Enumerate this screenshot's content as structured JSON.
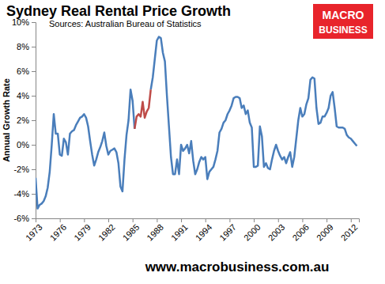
{
  "chart_data": {
    "type": "line",
    "title": "Sydney Real Rental Price Growth",
    "subtitle": "Sources: Australian Bureau of Statistics",
    "y_label": "Annual Growth Rate",
    "annotations": [
      "MACRO",
      "BUSINESS",
      "www.macrobusiness.com.au"
    ],
    "grid": false,
    "xlim": [
      1973,
      2013
    ],
    "xticks": [
      1973,
      1976,
      1979,
      1982,
      1985,
      1988,
      1991,
      1994,
      1997,
      2000,
      2003,
      2006,
      2009,
      2012
    ],
    "ylim": [
      -6,
      10
    ],
    "yticks": [
      {
        "value": -6,
        "label": "-6%"
      },
      {
        "value": -4,
        "label": "-4%"
      },
      {
        "value": -2,
        "label": "-2%"
      },
      {
        "value": 0,
        "label": "0%"
      },
      {
        "value": 2,
        "label": "2%"
      },
      {
        "value": 4,
        "label": "4%"
      },
      {
        "value": 6,
        "label": "6%"
      },
      {
        "value": 8,
        "label": "8%"
      },
      {
        "value": 10,
        "label": "10%"
      }
    ],
    "x": [
      1973,
      1973.25,
      1973.5,
      1973.75,
      1974,
      1974.25,
      1974.5,
      1974.75,
      1975,
      1975.25,
      1975.5,
      1975.75,
      1976,
      1976.25,
      1976.5,
      1976.75,
      1977,
      1977.25,
      1977.5,
      1977.75,
      1978,
      1978.25,
      1978.5,
      1978.75,
      1979,
      1979.25,
      1979.5,
      1979.75,
      1980,
      1980.25,
      1980.5,
      1980.75,
      1981,
      1981.25,
      1981.5,
      1981.75,
      1982,
      1982.25,
      1982.5,
      1982.75,
      1983,
      1983.25,
      1983.5,
      1983.75,
      1984,
      1984.25,
      1984.5,
      1984.75,
      1985,
      1985.25,
      1985.5,
      1985.75,
      1986,
      1986.25,
      1986.5,
      1986.75,
      1987,
      1987.25,
      1987.5,
      1987.75,
      1988,
      1988.25,
      1988.5,
      1988.75,
      1989,
      1989.25,
      1989.5,
      1989.75,
      1990,
      1990.25,
      1990.5,
      1990.75,
      1991,
      1991.25,
      1991.5,
      1991.75,
      1992,
      1992.25,
      1992.5,
      1992.75,
      1993,
      1993.25,
      1993.5,
      1993.75,
      1994,
      1994.25,
      1994.5,
      1994.75,
      1995,
      1995.25,
      1995.5,
      1995.75,
      1996,
      1996.25,
      1996.5,
      1996.75,
      1997,
      1997.25,
      1997.5,
      1997.75,
      1998,
      1998.25,
      1998.5,
      1998.75,
      1999,
      1999.25,
      1999.5,
      1999.75,
      2000,
      2000.25,
      2000.5,
      2000.75,
      2001,
      2001.25,
      2001.5,
      2001.75,
      2002,
      2002.25,
      2002.5,
      2002.75,
      2003,
      2003.25,
      2003.5,
      2003.75,
      2004,
      2004.25,
      2004.5,
      2004.75,
      2005,
      2005.25,
      2005.5,
      2005.75,
      2006,
      2006.25,
      2006.5,
      2006.75,
      2007,
      2007.25,
      2007.5,
      2007.75,
      2008,
      2008.25,
      2008.5,
      2008.75,
      2009,
      2009.25,
      2009.5,
      2009.75,
      2010,
      2010.25,
      2010.5,
      2010.75,
      2011,
      2011.25,
      2011.5,
      2011.75,
      2012,
      2012.25,
      2012.5,
      2012.75
    ],
    "series": [
      {
        "color": "#4a7ebb",
        "values": [
          -2.7,
          -5.2,
          -4.9,
          -4.8,
          -4.6,
          -4.2,
          -3.5,
          -2.2,
          0,
          2.5,
          0.9,
          0.9,
          -0.8,
          -0.9,
          0.5,
          0.2,
          -0.8,
          0.9,
          1.1,
          1.2,
          1.6,
          1.9,
          2.2,
          2.3,
          2.5,
          2.2,
          1.5,
          0.3,
          -0.8,
          -1.7,
          -1.2,
          -0.6,
          -0.2,
          0.3,
          1.0,
          -0.1,
          -0.8,
          -0.5,
          -0.4,
          -0.3,
          -0.6,
          -1.5,
          -3.4,
          -3.8,
          -1.2,
          0.8,
          2.0,
          4.5,
          3.6,
          1.3,
          null,
          null,
          null,
          null,
          null,
          null,
          null,
          4.5,
          5.5,
          7.0,
          8.5,
          8.8,
          8.7,
          7.5,
          6.8,
          4.0,
          1.5,
          -1.0,
          -2.4,
          -2.4,
          -1.2,
          -2.4,
          0,
          -0.5,
          -0.3,
          0,
          -0.7,
          0.3,
          -1.3,
          -2.4,
          -2.0,
          -1.4,
          -1.0,
          -1.2,
          -1.0,
          -2.8,
          -2.2,
          -2.0,
          -1.8,
          -1.2,
          -0.5,
          1.0,
          1.3,
          1.8,
          2.0,
          2.5,
          2.8,
          3.2,
          3.8,
          3.9,
          3.9,
          3.8,
          3.0,
          3.2,
          2.5,
          2.8,
          1.8,
          1.4,
          -1.8,
          -1.8,
          -1.7,
          1.5,
          0.7,
          -1.8,
          -1.5,
          -1.9,
          -2.0,
          -1.2,
          -0.5,
          0,
          -0.5,
          -0.9,
          -1.2,
          -1.0,
          -1.5,
          -1.0,
          -0.6,
          -1.8,
          -1.0,
          0.5,
          2.0,
          3.0,
          2.3,
          2.5,
          3.3,
          3.8,
          5.3,
          5.5,
          5.4,
          3.0,
          1.7,
          1.8,
          2.3,
          2.3,
          2.6,
          3.0,
          4.0,
          4.3,
          3.0,
          1.5,
          1.4,
          1.4,
          1.4,
          1.3,
          0.8,
          0.6,
          0.5,
          0.3,
          0.1,
          -0.1
        ]
      },
      {
        "color": "#be4b48",
        "values": [
          null,
          null,
          null,
          null,
          null,
          null,
          null,
          null,
          null,
          null,
          null,
          null,
          null,
          null,
          null,
          null,
          null,
          null,
          null,
          null,
          null,
          null,
          null,
          null,
          null,
          null,
          null,
          null,
          null,
          null,
          null,
          null,
          null,
          null,
          null,
          null,
          null,
          null,
          null,
          null,
          null,
          null,
          null,
          null,
          null,
          null,
          null,
          null,
          null,
          1.3,
          2.3,
          2.5,
          2.3,
          3.5,
          2.2,
          2.7,
          3.0,
          4.5,
          null,
          null,
          null,
          null,
          null,
          null,
          null,
          null,
          null,
          null,
          null,
          null,
          null,
          null,
          null,
          null,
          null,
          null,
          null,
          null,
          null,
          null,
          null,
          null,
          null,
          null,
          null,
          null,
          null,
          null,
          null,
          null,
          null,
          null,
          null,
          null,
          null,
          null,
          null,
          null,
          null,
          null,
          null,
          null,
          null,
          null,
          null,
          null,
          null,
          null,
          null,
          null,
          null,
          null,
          null,
          null,
          null,
          null,
          null,
          null,
          null,
          null,
          null,
          null,
          null,
          null,
          null,
          null,
          null,
          null,
          null,
          null,
          null,
          null,
          null,
          null,
          null,
          null,
          null,
          null,
          null,
          null,
          null,
          null,
          null,
          null,
          null,
          null,
          null,
          null,
          null,
          null,
          null,
          null,
          null,
          null,
          null,
          null,
          null,
          null,
          null,
          null
        ]
      }
    ]
  }
}
